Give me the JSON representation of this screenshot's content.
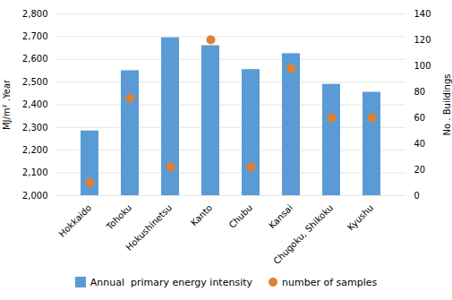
{
  "chart_data": {
    "type": "bar",
    "categories": [
      "Hokkaido",
      "Tohoku",
      "Hokushinetsu",
      "Kanto",
      "Chubu",
      "Kansai",
      "Chugoku, Shikoku",
      "Kyushu"
    ],
    "series": [
      {
        "name": "Annual  primary energy intensity",
        "type": "bar",
        "color": "#5B9BD5",
        "values": [
          2285,
          2550,
          2695,
          2660,
          2555,
          2625,
          2490,
          2455
        ]
      },
      {
        "name": "number of samples",
        "type": "scatter",
        "color": "#E08030",
        "axis": "y2",
        "values": [
          10,
          75,
          22,
          120,
          22,
          98,
          60,
          60
        ]
      }
    ],
    "ylabel": "MJ/m² .Year",
    "y2label": "No . Buildings",
    "ylim": [
      2000,
      2800
    ],
    "yticks": [
      {
        "value": 2000,
        "label": "2,000"
      },
      {
        "value": 2100,
        "label": "2,100"
      },
      {
        "value": 2200,
        "label": "2,200"
      },
      {
        "value": 2300,
        "label": "2,300"
      },
      {
        "value": 2400,
        "label": "2,400"
      },
      {
        "value": 2500,
        "label": "2,500"
      },
      {
        "value": 2600,
        "label": "2,600"
      },
      {
        "value": 2700,
        "label": "2,700"
      },
      {
        "value": 2800,
        "label": "2,800"
      }
    ],
    "y2lim": [
      0,
      140
    ],
    "y2ticks": [
      0,
      20,
      40,
      60,
      80,
      100,
      120,
      140
    ],
    "grid": true,
    "legend": "bottom"
  }
}
